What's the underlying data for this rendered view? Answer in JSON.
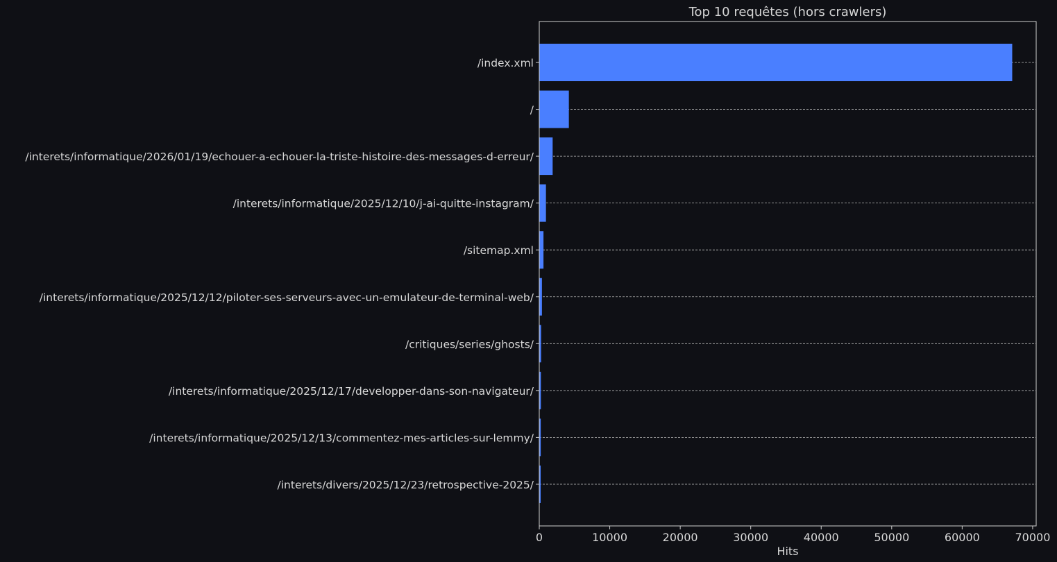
{
  "chart_data": {
    "type": "bar",
    "orientation": "horizontal",
    "title": "Top 10 requêtes (hors crawlers)",
    "xlabel": "Hits",
    "ylabel": "",
    "categories": [
      "/index.xml",
      "/",
      "/interets/informatique/2026/01/19/echouer-a-echouer-la-triste-histoire-des-messages-d-erreur/",
      "/interets/informatique/2025/12/10/j-ai-quitte-instagram/",
      "/sitemap.xml",
      "/interets/informatique/2025/12/12/piloter-ses-serveurs-avec-un-emulateur-de-terminal-web/",
      "/critiques/series/ghosts/",
      "/interets/informatique/2025/12/17/developper-dans-son-navigateur/",
      "/interets/informatique/2025/12/13/commentez-mes-articles-sur-lemmy/",
      "/interets/divers/2025/12/23/retrospective-2025/"
    ],
    "values": [
      67100,
      4200,
      1900,
      950,
      600,
      380,
      260,
      230,
      210,
      200
    ],
    "xlim": [
      0,
      70500
    ],
    "xticks": [
      0,
      10000,
      20000,
      30000,
      40000,
      50000,
      60000,
      70000
    ],
    "xtick_labels": [
      "0",
      "10000",
      "20000",
      "30000",
      "40000",
      "50000",
      "60000",
      "70000"
    ],
    "grid": "horizontal dashed lines at each bar",
    "legend": "none"
  },
  "colors": {
    "background": "#0f1015",
    "bar": "#4a7fff",
    "text": "#d8d8d8",
    "axis": "#cfcfcf",
    "grid": "#bdbdbd"
  }
}
